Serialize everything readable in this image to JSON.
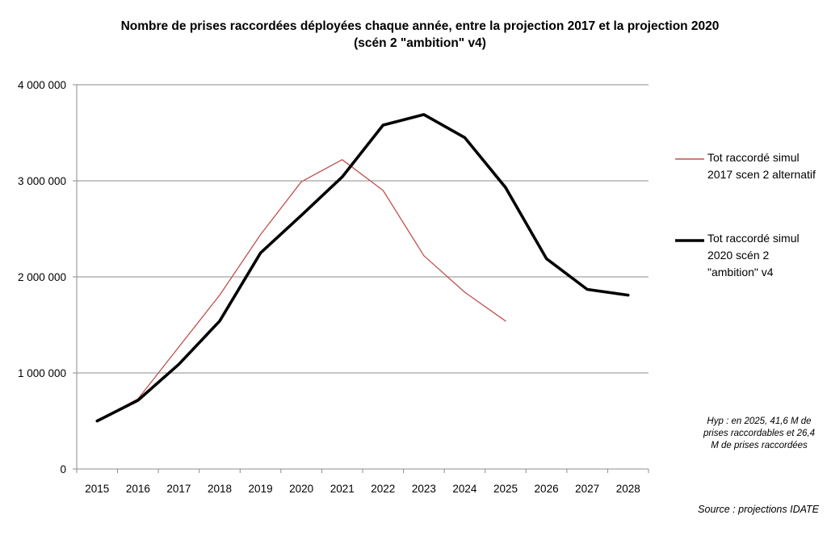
{
  "title_line1": "Nombre de prises raccordées déployées chaque année, entre la projection 2017  et la projection 2020",
  "title_line2": "(scén 2 \"ambition\" v4)",
  "note": "Hyp : en 2025, 41,6 M de prises raccordables et 26,4 M de prises raccordées",
  "source": "Source : projections IDATE",
  "chart_data": {
    "type": "line",
    "categories": [
      "2015",
      "2016",
      "2017",
      "2018",
      "2019",
      "2020",
      "2021",
      "2022",
      "2023",
      "2024",
      "2025",
      "2026",
      "2027",
      "2028"
    ],
    "y_ticks": [
      0,
      1000000,
      2000000,
      3000000,
      4000000
    ],
    "y_tick_labels": [
      "0",
      "1 000 000",
      "2 000 000",
      "3 000 000",
      "4 000 000"
    ],
    "ylim": [
      0,
      4000000
    ],
    "grid": true,
    "legend_position": "right",
    "series": [
      {
        "name": "Tot raccordé simul 2017 scen 2 alternatif",
        "color": "#c0504d",
        "line_style": "thin",
        "values": [
          500000,
          730000,
          1270000,
          1810000,
          2440000,
          2990000,
          3220000,
          2900000,
          2220000,
          1840000,
          1540000,
          null,
          null,
          null
        ]
      },
      {
        "name": "Tot raccordé simul 2020 scén 2 \"ambition\" v4",
        "color": "#000000",
        "line_style": "thick",
        "values": [
          500000,
          715000,
          1090000,
          1540000,
          2250000,
          2640000,
          3040000,
          3580000,
          3690000,
          3450000,
          2930000,
          2190000,
          1870000,
          1810000
        ]
      }
    ]
  }
}
